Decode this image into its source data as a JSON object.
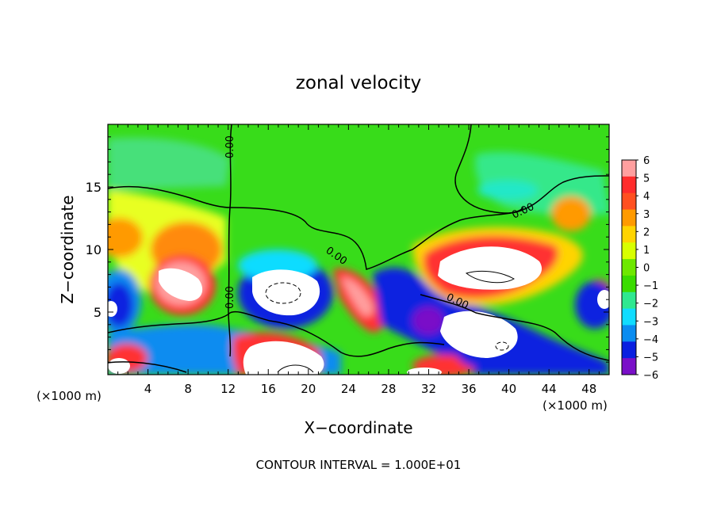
{
  "chart_data": {
    "type": "heatmap",
    "title": "zonal velocity",
    "xlabel": "X−coordinate",
    "ylabel": "Z−coordinate",
    "x_unit_left": "(×1000 m)",
    "x_unit_right": "(×1000 m)",
    "footer": "CONTOUR INTERVAL = 1.000E+01",
    "xlim": [
      0,
      50
    ],
    "ylim": [
      0,
      20
    ],
    "x_ticks": [
      "4",
      "8",
      "12",
      "16",
      "20",
      "24",
      "28",
      "32",
      "36",
      "40",
      "44",
      "48"
    ],
    "y_ticks": [
      "5",
      "10",
      "15"
    ],
    "colorbar": {
      "range": [
        -6,
        6
      ],
      "labels": [
        "6",
        "5",
        "4",
        "3",
        "2",
        "1",
        "0",
        "−1",
        "−2",
        "−3",
        "−4",
        "−5",
        "−6"
      ],
      "colors": [
        "#ff9f9f",
        "#ff2c2c",
        "#ff5020",
        "#ff9a00",
        "#ffd400",
        "#d8ff00",
        "#6ee800",
        "#3adc00",
        "#2fe890",
        "#10dcff",
        "#0a8cf0",
        "#0a20e0",
        "#7a10c8"
      ]
    },
    "contour_labels": [
      "0.00",
      "0.00",
      "0.00",
      "0.00",
      "0.00"
    ],
    "background_color": "#38dc1a"
  }
}
